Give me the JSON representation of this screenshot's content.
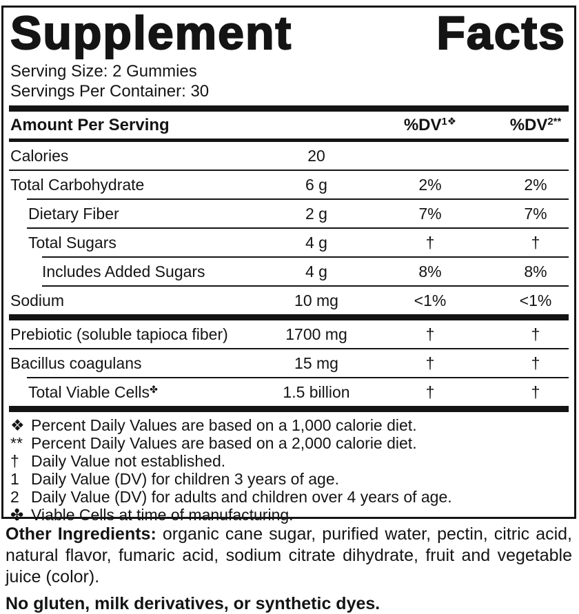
{
  "title": "Supplement Facts",
  "serving": {
    "size_line": "Serving Size: 2 Gummies",
    "container_line": "Servings Per Container: 30"
  },
  "table": {
    "header": {
      "amount_label": "Amount Per Serving",
      "dv1_base": "%DV",
      "dv1_sup": "1❖",
      "dv2_base": "%DV",
      "dv2_sup": "2**"
    },
    "rows": [
      {
        "name": "Calories",
        "sup": "",
        "amount": "20",
        "dv1": "",
        "dv2": ""
      },
      {
        "name": "Total Carbohydrate",
        "sup": "",
        "amount": "6 g",
        "dv1": "2%",
        "dv2": "2%"
      },
      {
        "name": "Dietary Fiber",
        "sup": "",
        "amount": "2 g",
        "dv1": "7%",
        "dv2": "7%"
      },
      {
        "name": "Total Sugars",
        "sup": "",
        "amount": "4 g",
        "dv1": "†",
        "dv2": "†"
      },
      {
        "name": "Includes Added Sugars",
        "sup": "",
        "amount": "4 g",
        "dv1": "8%",
        "dv2": "8%"
      },
      {
        "name": "Sodium",
        "sup": "",
        "amount": "10 mg",
        "dv1": "<1%",
        "dv2": "<1%"
      },
      {
        "name": "Prebiotic (soluble tapioca fiber)",
        "sup": "",
        "amount": "1700 mg",
        "dv1": "†",
        "dv2": "†"
      },
      {
        "name": "Bacillus coagulans",
        "sup": "",
        "amount": "15 mg",
        "dv1": "†",
        "dv2": "†"
      },
      {
        "name": "Total Viable Cells",
        "sup": "✤",
        "amount": "1.5 billion",
        "dv1": "†",
        "dv2": "†"
      }
    ]
  },
  "footnotes": [
    {
      "marker": "❖",
      "text": "Percent Daily Values are based on a 1,000 calorie diet."
    },
    {
      "marker": "**",
      "text": "Percent Daily Values are based on a 2,000 calorie diet."
    },
    {
      "marker": "†",
      "text": "Daily Value not established."
    },
    {
      "marker": "1",
      "text": "Daily Value (DV) for children 3 years of age."
    },
    {
      "marker": "2",
      "text": "Daily Value (DV) for adults and children over 4 years of age."
    },
    {
      "marker": "✤",
      "text": "Viable Cells at time of manufacturing."
    }
  ],
  "other_ingredients": {
    "label": "Other Ingredients:",
    "text": "organic cane sugar, purified water, pectin, citric acid, natural flavor, fumaric acid, sodium citrate dihydrate, fruit and vegetable juice (color)."
  },
  "allergen_statement": "No gluten, milk derivatives, or synthetic dyes.",
  "colors": {
    "text": "#141414",
    "background": "#ffffff",
    "border": "#141414"
  }
}
